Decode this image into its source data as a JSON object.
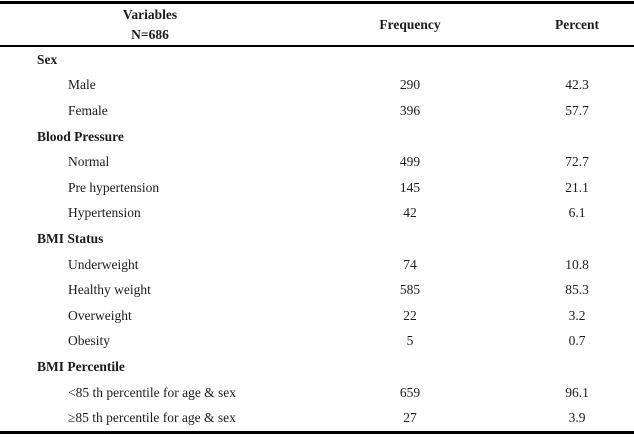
{
  "table": {
    "header": {
      "variables_line1": "Variables",
      "variables_line2": "N=686",
      "frequency": "Frequency",
      "percent": "Percent"
    },
    "sections": [
      {
        "label": "Sex",
        "rows": [
          {
            "label": "Male",
            "frequency": "290",
            "percent": "42.3"
          },
          {
            "label": "Female",
            "frequency": "396",
            "percent": "57.7"
          }
        ]
      },
      {
        "label": "Blood Pressure",
        "rows": [
          {
            "label": "Normal",
            "frequency": "499",
            "percent": "72.7"
          },
          {
            "label": "Pre hypertension",
            "frequency": "145",
            "percent": "21.1"
          },
          {
            "label": "Hypertension",
            "frequency": "42",
            "percent": "6.1"
          }
        ]
      },
      {
        "label": "BMI Status",
        "rows": [
          {
            "label": "Underweight",
            "frequency": "74",
            "percent": "10.8"
          },
          {
            "label": "Healthy weight",
            "frequency": "585",
            "percent": "85.3"
          },
          {
            "label": "Overweight",
            "frequency": "22",
            "percent": "3.2"
          },
          {
            "label": "Obesity",
            "frequency": "5",
            "percent": "0.7"
          }
        ]
      },
      {
        "label": "BMI Percentile",
        "rows": [
          {
            "label": "<85 th percentile for age & sex",
            "frequency": "659",
            "percent": "96.1"
          },
          {
            "label": "≥85 th percentile for age & sex",
            "frequency": "27",
            "percent": "3.9"
          }
        ]
      }
    ],
    "colors": {
      "text": "#1b1b1b",
      "rule": "#000000",
      "background": "#ffffff"
    }
  }
}
